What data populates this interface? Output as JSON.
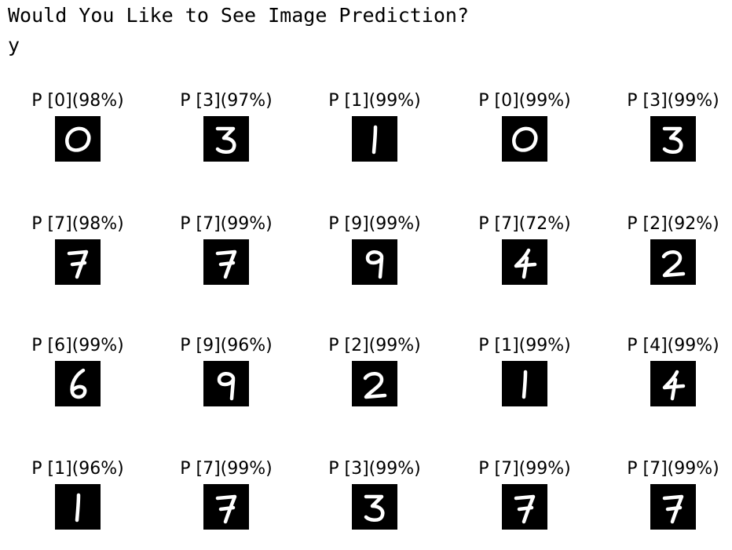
{
  "prompt": {
    "question": "Would You Like to See Image Prediction?",
    "answer": "y"
  },
  "predictions": [
    {
      "label": "P [0](98%)",
      "digit": 0
    },
    {
      "label": "P [3](97%)",
      "digit": 3
    },
    {
      "label": "P [1](99%)",
      "digit": 1
    },
    {
      "label": "P [0](99%)",
      "digit": 0
    },
    {
      "label": "P [3](99%)",
      "digit": 3
    },
    {
      "label": "P [7](98%)",
      "digit": 7
    },
    {
      "label": "P [7](99%)",
      "digit": 7
    },
    {
      "label": "P [9](99%)",
      "digit": 9
    },
    {
      "label": "P [7](72%)",
      "digit": 4
    },
    {
      "label": "P [2](92%)",
      "digit": 2
    },
    {
      "label": "P [6](99%)",
      "digit": 6
    },
    {
      "label": "P [9](96%)",
      "digit": 9
    },
    {
      "label": "P [2](99%)",
      "digit": 2
    },
    {
      "label": "P [1](99%)",
      "digit": 1
    },
    {
      "label": "P [4](99%)",
      "digit": 4
    },
    {
      "label": "P [1](96%)",
      "digit": 1
    },
    {
      "label": "P [7](99%)",
      "digit": 7
    },
    {
      "label": "P [3](99%)",
      "digit": 3
    },
    {
      "label": "P [7](99%)",
      "digit": 7
    },
    {
      "label": "P [7](99%)",
      "digit": 7
    }
  ],
  "grid": {
    "rows": 4,
    "columns": 5
  }
}
